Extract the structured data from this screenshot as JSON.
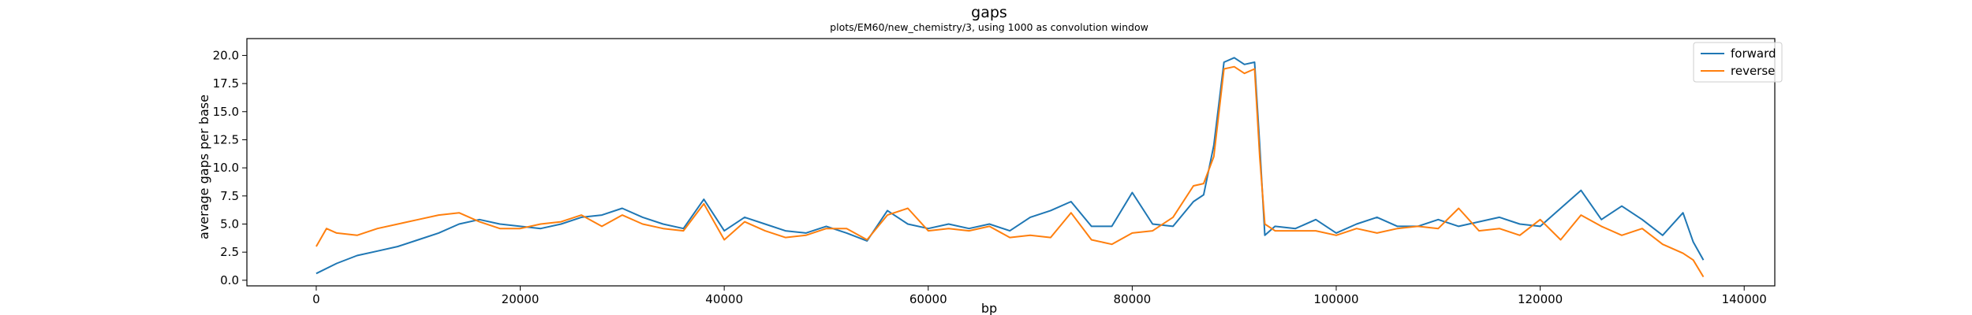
{
  "chart_data": {
    "type": "line",
    "title": "gaps",
    "subtitle": "plots/EM60/new_chemistry/3, using 1000 as convolution window",
    "xlabel": "bp",
    "ylabel": "average gaps per base",
    "xlim": [
      -6800,
      143000
    ],
    "ylim": [
      -0.5,
      21.5
    ],
    "x_ticks": [
      0,
      20000,
      40000,
      60000,
      80000,
      100000,
      120000,
      140000
    ],
    "x_tick_labels": [
      "0",
      "20000",
      "40000",
      "60000",
      "80000",
      "100000",
      "120000",
      "140000"
    ],
    "y_ticks": [
      0.0,
      2.5,
      5.0,
      7.5,
      10.0,
      12.5,
      15.0,
      17.5,
      20.0
    ],
    "y_tick_labels": [
      "0.0",
      "2.5",
      "5.0",
      "7.5",
      "10.0",
      "12.5",
      "15.0",
      "17.5",
      "20.0"
    ],
    "grid": false,
    "legend": "top-right",
    "series": [
      {
        "name": "forward",
        "color": "#1f77b4",
        "x": [
          0,
          2000,
          4000,
          6000,
          8000,
          10000,
          12000,
          14000,
          16000,
          18000,
          20000,
          22000,
          24000,
          26000,
          28000,
          30000,
          32000,
          34000,
          36000,
          38000,
          40000,
          42000,
          44000,
          46000,
          48000,
          50000,
          52000,
          54000,
          56000,
          58000,
          60000,
          62000,
          64000,
          66000,
          68000,
          70000,
          72000,
          74000,
          76000,
          78000,
          80000,
          82000,
          84000,
          86000,
          87000,
          88000,
          89000,
          90000,
          91000,
          92000,
          92500,
          93000,
          94000,
          96000,
          98000,
          100000,
          102000,
          104000,
          106000,
          108000,
          110000,
          112000,
          114000,
          116000,
          118000,
          120000,
          122000,
          124000,
          126000,
          128000,
          130000,
          132000,
          134000,
          135000,
          136000
        ],
        "y": [
          0.6,
          1.5,
          2.2,
          2.6,
          3.0,
          3.6,
          4.2,
          5.0,
          5.4,
          5.0,
          4.8,
          4.6,
          5.0,
          5.6,
          5.8,
          6.4,
          5.6,
          5.0,
          4.6,
          7.2,
          4.4,
          5.6,
          5.0,
          4.4,
          4.2,
          4.8,
          4.2,
          3.5,
          6.2,
          5.0,
          4.6,
          5.0,
          4.6,
          5.0,
          4.4,
          5.6,
          6.2,
          7.0,
          4.8,
          4.8,
          7.8,
          5.0,
          4.8,
          7.0,
          7.6,
          12.0,
          19.4,
          19.8,
          19.2,
          19.4,
          12.0,
          4.0,
          4.8,
          4.6,
          5.4,
          4.2,
          5.0,
          5.6,
          4.8,
          4.8,
          5.4,
          4.8,
          5.2,
          5.6,
          5.0,
          4.8,
          6.4,
          8.0,
          5.4,
          6.6,
          5.4,
          4.0,
          6.0,
          3.4,
          1.8
        ]
      },
      {
        "name": "reverse",
        "color": "#ff7f0e",
        "x": [
          0,
          1000,
          2000,
          4000,
          6000,
          8000,
          10000,
          12000,
          14000,
          16000,
          18000,
          20000,
          22000,
          24000,
          26000,
          28000,
          30000,
          32000,
          34000,
          36000,
          38000,
          40000,
          42000,
          44000,
          46000,
          48000,
          50000,
          52000,
          54000,
          56000,
          58000,
          60000,
          62000,
          64000,
          66000,
          68000,
          70000,
          72000,
          74000,
          76000,
          78000,
          80000,
          82000,
          84000,
          86000,
          87000,
          88000,
          89000,
          90000,
          91000,
          92000,
          92500,
          93000,
          94000,
          96000,
          98000,
          100000,
          102000,
          104000,
          106000,
          108000,
          110000,
          112000,
          114000,
          116000,
          118000,
          120000,
          122000,
          124000,
          126000,
          128000,
          130000,
          132000,
          134000,
          135000,
          136000
        ],
        "y": [
          3.0,
          4.6,
          4.2,
          4.0,
          4.6,
          5.0,
          5.4,
          5.8,
          6.0,
          5.2,
          4.6,
          4.6,
          5.0,
          5.2,
          5.8,
          4.8,
          5.8,
          5.0,
          4.6,
          4.4,
          6.8,
          3.6,
          5.2,
          4.4,
          3.8,
          4.0,
          4.6,
          4.6,
          3.6,
          5.8,
          6.4,
          4.4,
          4.6,
          4.4,
          4.8,
          3.8,
          4.0,
          3.8,
          6.0,
          3.6,
          3.2,
          4.2,
          4.4,
          5.6,
          8.4,
          8.6,
          11.0,
          18.8,
          19.0,
          18.4,
          18.8,
          11.0,
          5.0,
          4.4,
          4.4,
          4.4,
          4.0,
          4.6,
          4.2,
          4.6,
          4.8,
          4.6,
          6.4,
          4.4,
          4.6,
          4.0,
          5.4,
          3.6,
          5.8,
          4.8,
          4.0,
          4.6,
          3.2,
          2.4,
          1.8,
          0.3
        ]
      }
    ]
  }
}
